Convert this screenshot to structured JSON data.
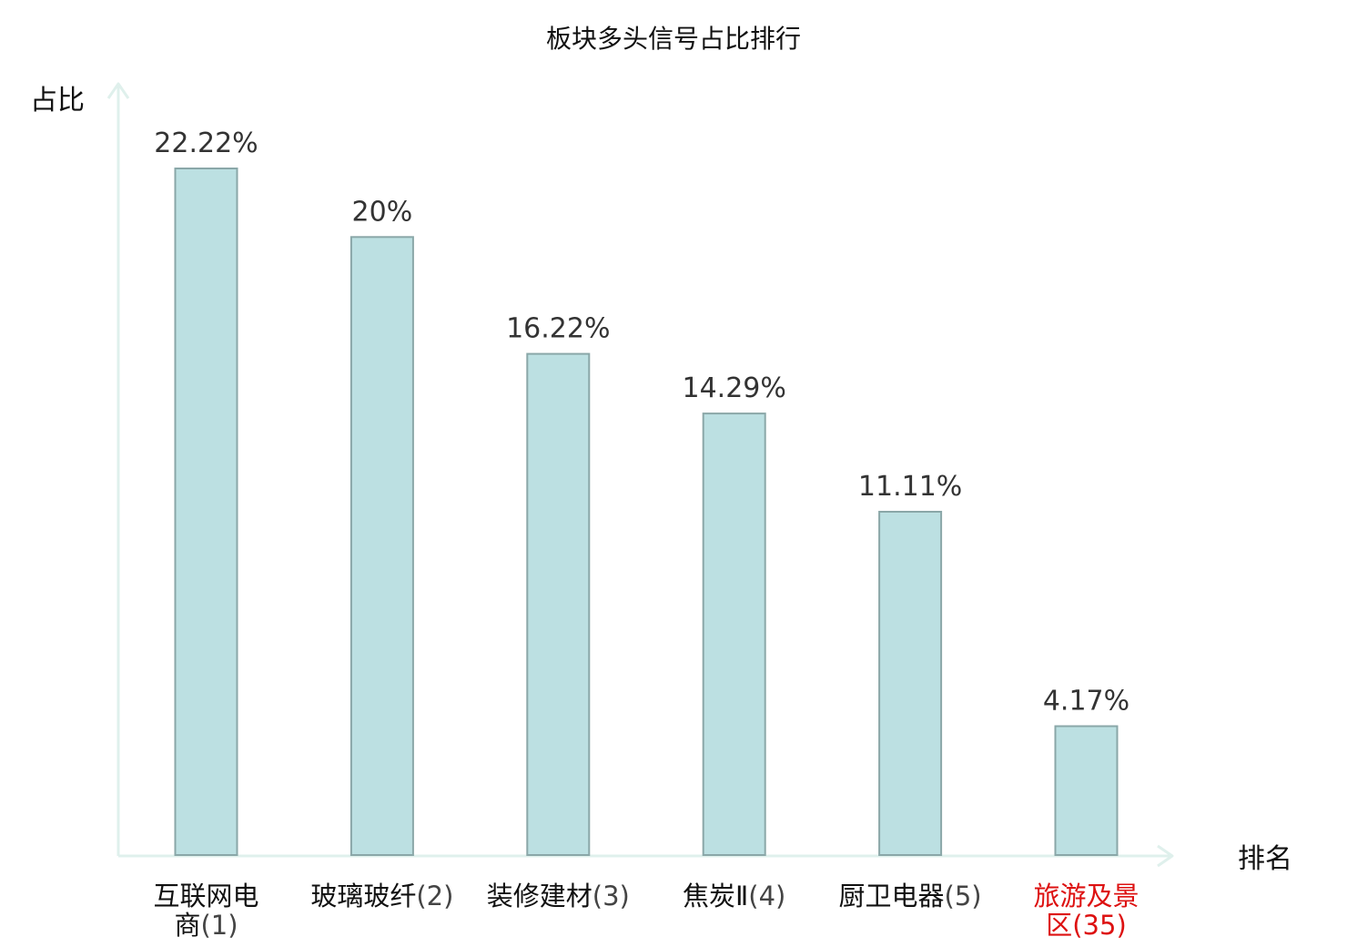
{
  "chart_data": {
    "type": "bar",
    "title": "板块多头信号占比排行",
    "ylabel": "占比",
    "xlabel": "排名",
    "categories": [
      {
        "name_lines": [
          "互联网电",
          "商"
        ],
        "rank": "(1)",
        "highlight": false
      },
      {
        "name_lines": [
          "玻璃玻纤"
        ],
        "rank": "(2)",
        "highlight": false
      },
      {
        "name_lines": [
          "装修建材"
        ],
        "rank": "(3)",
        "highlight": false
      },
      {
        "name_lines": [
          "焦炭Ⅱ"
        ],
        "rank": "(4)",
        "highlight": false
      },
      {
        "name_lines": [
          "厨卫电器"
        ],
        "rank": "(5)",
        "highlight": false
      },
      {
        "name_lines": [
          "旅游及景",
          "区"
        ],
        "rank": "(35)",
        "highlight": true
      }
    ],
    "values": [
      22.22,
      20,
      16.22,
      14.29,
      11.11,
      4.17
    ],
    "value_labels": [
      "22.22%",
      "20%",
      "16.22%",
      "14.29%",
      "11.11%",
      "4.17%"
    ],
    "unit": "%",
    "ylim": [
      0,
      22.22
    ],
    "grid": false,
    "legend": "none",
    "colors": {
      "bar_fill": "#bce0e2",
      "bar_stroke": "#8aa7a8",
      "axis": "#dff0ec",
      "name_text": "#111111",
      "rank_text": "#444444",
      "highlight_text": "#dd1111"
    }
  }
}
